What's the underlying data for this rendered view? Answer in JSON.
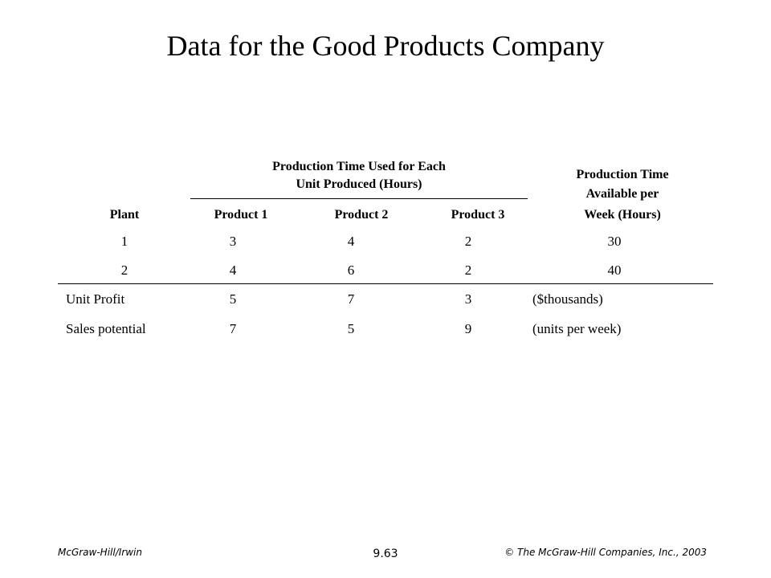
{
  "title": "Data for the Good Products Company",
  "table": {
    "group_header_line1": "Production Time Used for Each",
    "group_header_line2": "Unit Produced (Hours)",
    "avail_header_line1": "Production Time",
    "avail_header_line2": "Available per",
    "avail_header_line3": "Week (Hours)",
    "col_plant": "Plant",
    "col_product1": "Product 1",
    "col_product2": "Product 2",
    "col_product3": "Product 3",
    "rows": [
      {
        "plant": "1",
        "p1": "3",
        "p2": "4",
        "p3": "2",
        "avail": "30"
      },
      {
        "plant": "2",
        "p1": "4",
        "p2": "6",
        "p3": "2",
        "avail": "40"
      }
    ],
    "unit_profit": {
      "label": "Unit Profit",
      "p1": "5",
      "p2": "7",
      "p3": "3",
      "note": "($thousands)"
    },
    "sales_potential": {
      "label": "Sales potential",
      "p1": "7",
      "p2": "5",
      "p3": "9",
      "note": "(units per week)"
    }
  },
  "footer": {
    "publisher": "McGraw-Hill/Irwin",
    "page_number": "9.63",
    "copyright": "© The McGraw-Hill Companies, Inc., 2003"
  }
}
